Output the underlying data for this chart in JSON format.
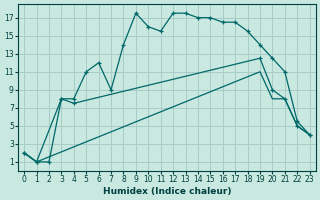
{
  "xlabel": "Humidex (Indice chaleur)",
  "bg_color": "#c8e8e0",
  "grid_color": "#a8ccc8",
  "line_color": "#006868",
  "xlim": [
    -0.5,
    23.5
  ],
  "ylim": [
    0,
    18.5
  ],
  "xticks": [
    0,
    1,
    2,
    3,
    4,
    5,
    6,
    7,
    8,
    9,
    10,
    11,
    12,
    13,
    14,
    15,
    16,
    17,
    18,
    19,
    20,
    21,
    22,
    23
  ],
  "yticks": [
    1,
    3,
    5,
    7,
    9,
    11,
    13,
    15,
    17
  ],
  "curve1_x": [
    0,
    1,
    2,
    3,
    4,
    5,
    6,
    7,
    8,
    9,
    10,
    11,
    12,
    13,
    14,
    15,
    16,
    17,
    18,
    19,
    20,
    21,
    22,
    23
  ],
  "curve1_y": [
    2,
    1,
    1,
    8,
    8,
    11,
    12,
    9,
    14,
    17.5,
    16,
    15.5,
    17.5,
    17.5,
    17,
    17,
    16.5,
    16.5,
    15.5,
    14,
    12.5,
    11,
    5.5,
    4
  ],
  "curve2_x": [
    0,
    1,
    3,
    4,
    19,
    20,
    21,
    22,
    23
  ],
  "curve2_y": [
    2,
    1,
    8,
    7.5,
    12.5,
    9,
    8,
    5,
    4
  ],
  "curve3_x": [
    0,
    1,
    19,
    20,
    21,
    22,
    23
  ],
  "curve3_y": [
    2,
    1,
    11,
    8,
    8,
    5,
    4
  ]
}
